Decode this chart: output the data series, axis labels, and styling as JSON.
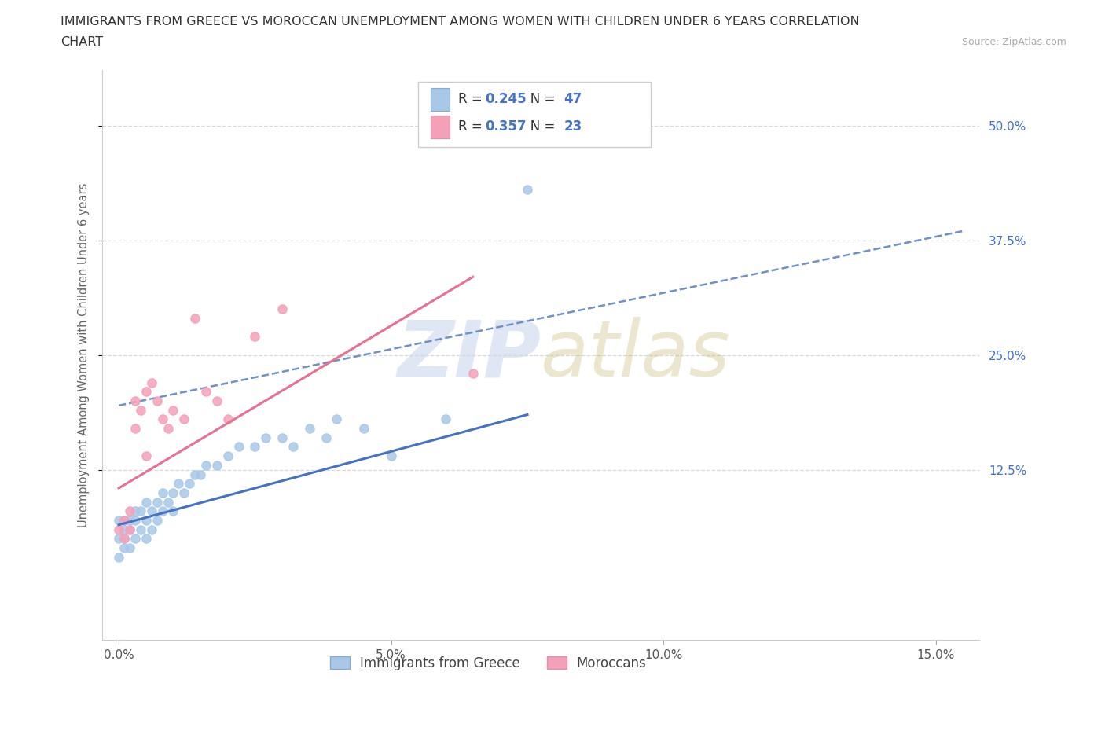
{
  "title_line1": "IMMIGRANTS FROM GREECE VS MOROCCAN UNEMPLOYMENT AMONG WOMEN WITH CHILDREN UNDER 6 YEARS CORRELATION",
  "title_line2": "CHART",
  "source": "Source: ZipAtlas.com",
  "ylabel": "Unemployment Among Women with Children Under 6 years",
  "greece_R": 0.245,
  "greece_N": 47,
  "morocco_R": 0.357,
  "morocco_N": 23,
  "greece_color": "#a8c8e8",
  "morocco_color": "#f4a0b8",
  "greece_line_color": "#4472c4",
  "morocco_line_color": "#e87090",
  "dash_line_color": "#7090c8",
  "watermark_color": "#c8d8ec",
  "legend_label_greece": "Immigrants from Greece",
  "legend_label_morocco": "Moroccans",
  "xlim": [
    -0.003,
    0.158
  ],
  "ylim": [
    -0.06,
    0.56
  ],
  "xticks": [
    0.0,
    0.05,
    0.1,
    0.15
  ],
  "xtick_labels": [
    "0.0%",
    "5.0%",
    "10.0%",
    "15.0%"
  ],
  "yticks": [
    0.125,
    0.25,
    0.375,
    0.5
  ],
  "ytick_labels": [
    "12.5%",
    "25.0%",
    "37.5%",
    "50.0%"
  ],
  "greece_x": [
    0.0,
    0.0,
    0.0,
    0.001,
    0.001,
    0.001,
    0.001,
    0.002,
    0.002,
    0.002,
    0.003,
    0.003,
    0.003,
    0.004,
    0.004,
    0.005,
    0.005,
    0.005,
    0.006,
    0.006,
    0.007,
    0.007,
    0.008,
    0.008,
    0.009,
    0.01,
    0.01,
    0.011,
    0.012,
    0.013,
    0.014,
    0.015,
    0.016,
    0.018,
    0.02,
    0.022,
    0.025,
    0.027,
    0.03,
    0.032,
    0.035,
    0.038,
    0.04,
    0.045,
    0.05,
    0.06,
    0.075
  ],
  "greece_y": [
    0.05,
    0.07,
    0.03,
    0.04,
    0.06,
    0.07,
    0.05,
    0.04,
    0.06,
    0.07,
    0.05,
    0.07,
    0.08,
    0.06,
    0.08,
    0.05,
    0.07,
    0.09,
    0.06,
    0.08,
    0.07,
    0.09,
    0.08,
    0.1,
    0.09,
    0.08,
    0.1,
    0.11,
    0.1,
    0.11,
    0.12,
    0.12,
    0.13,
    0.13,
    0.14,
    0.15,
    0.15,
    0.16,
    0.16,
    0.15,
    0.17,
    0.16,
    0.18,
    0.17,
    0.14,
    0.18,
    0.43
  ],
  "morocco_x": [
    0.0,
    0.001,
    0.001,
    0.002,
    0.002,
    0.003,
    0.003,
    0.004,
    0.005,
    0.005,
    0.006,
    0.007,
    0.008,
    0.009,
    0.01,
    0.012,
    0.014,
    0.016,
    0.018,
    0.02,
    0.025,
    0.03,
    0.065
  ],
  "morocco_y": [
    0.06,
    0.05,
    0.07,
    0.06,
    0.08,
    0.17,
    0.2,
    0.19,
    0.14,
    0.21,
    0.22,
    0.2,
    0.18,
    0.17,
    0.19,
    0.18,
    0.29,
    0.21,
    0.2,
    0.18,
    0.27,
    0.3,
    0.23
  ],
  "greece_trendline_x": [
    0.0,
    0.075
  ],
  "greece_trendline_y": [
    0.065,
    0.185
  ],
  "morocco_trendline_x": [
    0.0,
    0.065
  ],
  "morocco_trendline_y": [
    0.105,
    0.335
  ],
  "dash_line_x": [
    0.0,
    0.155
  ],
  "dash_line_y": [
    0.195,
    0.385
  ]
}
